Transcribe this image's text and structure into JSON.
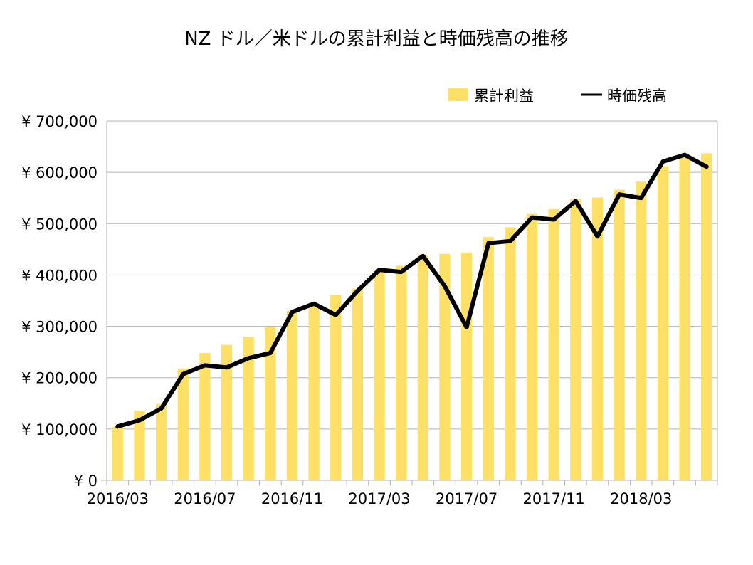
{
  "chart_data": {
    "type": "bar",
    "title": "NZ ドル／米ドルの累計利益と時価残高の推移",
    "categories": [
      "2016/03",
      "2016/04",
      "2016/05",
      "2016/06",
      "2016/07",
      "2016/08",
      "2016/09",
      "2016/10",
      "2016/11",
      "2016/12",
      "2017/01",
      "2017/02",
      "2017/03",
      "2017/04",
      "2017/05",
      "2017/06",
      "2017/07",
      "2017/08",
      "2017/09",
      "2017/10",
      "2017/11",
      "2017/12",
      "2018/01",
      "2018/02",
      "2018/03",
      "2018/04",
      "2018/05",
      "2018/06"
    ],
    "x_tick_labels": [
      "2016/03",
      "2016/07",
      "2016/11",
      "2017/03",
      "2017/07",
      "2017/11",
      "2018/03"
    ],
    "x_tick_indices": [
      0,
      4,
      8,
      12,
      16,
      20,
      24
    ],
    "ylim": [
      0,
      700000
    ],
    "y_ticks": [
      0,
      100000,
      200000,
      300000,
      400000,
      500000,
      600000,
      700000
    ],
    "y_tick_labels": [
      "¥ 0",
      "¥ 100,000",
      "¥ 200,000",
      "¥ 300,000",
      "¥ 400,000",
      "¥ 500,000",
      "¥ 600,000",
      "¥ 700,000"
    ],
    "grid": true,
    "legend_position": "top-right",
    "colors": {
      "bar": "#ffe066",
      "line": "#000000",
      "grid": "#b3b3b3"
    },
    "series": [
      {
        "name": "累計利益",
        "kind": "bar",
        "values": [
          104000,
          136000,
          149000,
          218000,
          248000,
          264000,
          280000,
          298000,
          330000,
          339000,
          361000,
          373000,
          409000,
          418000,
          437000,
          441000,
          444000,
          474000,
          493000,
          519000,
          528000,
          548000,
          551000,
          566000,
          582000,
          612000,
          628000,
          637000
        ]
      },
      {
        "name": "時価残高",
        "kind": "line",
        "values": [
          105000,
          117000,
          140000,
          207000,
          224000,
          220000,
          238000,
          248000,
          328000,
          344000,
          322000,
          369000,
          410000,
          406000,
          437000,
          378000,
          298000,
          462000,
          466000,
          512000,
          508000,
          544000,
          475000,
          557000,
          550000,
          621000,
          634000,
          611000
        ]
      }
    ]
  }
}
